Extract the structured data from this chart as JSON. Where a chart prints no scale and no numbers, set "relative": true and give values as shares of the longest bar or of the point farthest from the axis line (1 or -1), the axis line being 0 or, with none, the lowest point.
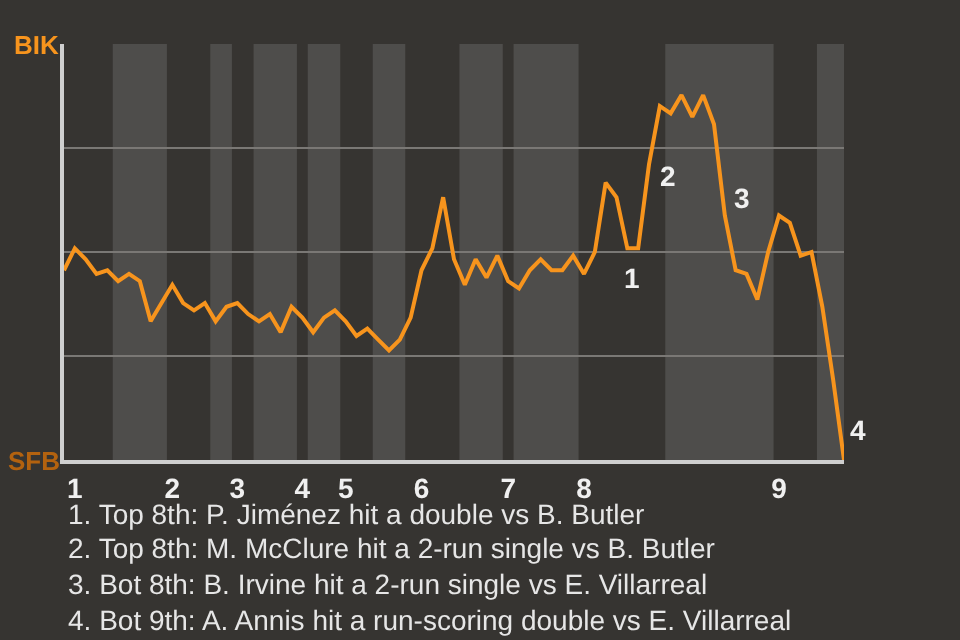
{
  "chart_data": {
    "type": "line",
    "relative": true,
    "categories": [
      null,
      "1",
      null,
      null,
      null,
      null,
      null,
      null,
      null,
      null,
      "2",
      null,
      null,
      null,
      null,
      null,
      "3",
      null,
      null,
      null,
      null,
      null,
      "4",
      null,
      null,
      null,
      "5",
      null,
      null,
      null,
      null,
      null,
      null,
      "6",
      null,
      null,
      null,
      null,
      null,
      null,
      null,
      "7",
      null,
      null,
      null,
      null,
      null,
      null,
      "8",
      null,
      null,
      null,
      null,
      null,
      null,
      null,
      null,
      null,
      null,
      null,
      null,
      null,
      null,
      null,
      null,
      null,
      "9",
      null,
      null,
      null,
      null,
      null,
      null
    ],
    "series": [
      {
        "color": "#f7941d",
        "values": [
          0.52,
          0.58,
          0.55,
          0.51,
          0.52,
          0.49,
          0.51,
          0.49,
          0.38,
          0.43,
          0.48,
          0.43,
          0.41,
          0.43,
          0.38,
          0.42,
          0.43,
          0.4,
          0.38,
          0.4,
          0.35,
          0.42,
          0.39,
          0.35,
          0.39,
          0.41,
          0.38,
          0.34,
          0.36,
          0.33,
          0.3,
          0.33,
          0.39,
          0.52,
          0.58,
          0.72,
          0.55,
          0.48,
          0.55,
          0.5,
          0.56,
          0.49,
          0.47,
          0.52,
          0.55,
          0.52,
          0.52,
          0.56,
          0.51,
          0.57,
          0.76,
          0.72,
          0.58,
          0.58,
          0.81,
          0.97,
          0.95,
          1,
          0.94,
          1,
          0.92,
          0.67,
          0.52,
          0.51,
          0.44,
          0.57,
          0.67,
          0.65,
          0.56,
          0.57,
          0.42,
          0.22,
          0
        ]
      }
    ],
    "grid": "y",
    "marker": "none",
    "line_style": "solid",
    "annotations": [
      "BIK",
      "SFB",
      "1",
      "2",
      "3",
      "4",
      "1. Top 8th: P. Jiménez hit a double vs B. Butler",
      "2. Top 8th: M. McClure hit a 2-run single vs B. Butler",
      "3. Bot 8th: B. Irvine hit a 2-run single vs E. Villarreal",
      "4. Bot 9th: A. Annis hit a run-scoring double vs E. Villarreal"
    ]
  }
}
